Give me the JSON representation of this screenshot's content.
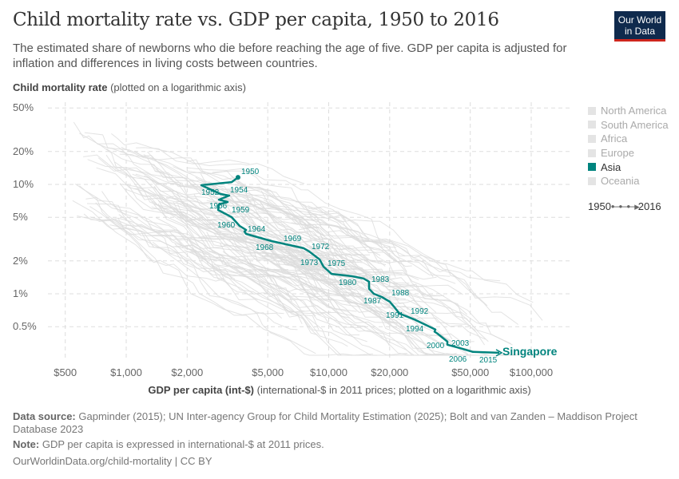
{
  "header": {
    "title": "Child mortality rate vs. GDP per capita, 1950 to 2016",
    "subtitle": "The estimated share of newborns who die before reaching the age of five. GDP per capita is adjusted for inflation and differences in living costs between countries.",
    "logo": "Our World in Data"
  },
  "chart_data": {
    "type": "line",
    "title": "Child mortality rate vs. GDP per capita, 1950 to 2016",
    "ylabel_bold": "Child mortality rate",
    "ylabel_note": "(plotted on a logarithmic axis)",
    "xlabel_bold": "GDP per capita (int-$)",
    "xlabel_note": "(international-$ in 2011 prices; plotted on a logarithmic axis)",
    "x_scale": "log",
    "y_scale": "log",
    "xlim": [
      420,
      140000
    ],
    "ylim": [
      0.25,
      55
    ],
    "grid": true,
    "x_ticks": [
      {
        "v": 500,
        "label": "$500"
      },
      {
        "v": 1000,
        "label": "$1,000"
      },
      {
        "v": 2000,
        "label": "$2,000"
      },
      {
        "v": 5000,
        "label": "$5,000"
      },
      {
        "v": 10000,
        "label": "$10,000"
      },
      {
        "v": 20000,
        "label": "$20,000"
      },
      {
        "v": 50000,
        "label": "$50,000"
      },
      {
        "v": 100000,
        "label": "$100,000"
      }
    ],
    "y_ticks": [
      {
        "v": 50,
        "label": "50%"
      },
      {
        "v": 20,
        "label": "20%"
      },
      {
        "v": 10,
        "label": "10%"
      },
      {
        "v": 5,
        "label": "5%"
      },
      {
        "v": 2,
        "label": "2%"
      },
      {
        "v": 1,
        "label": "1%"
      },
      {
        "v": 0.5,
        "label": "0.5%"
      }
    ],
    "highlight": {
      "name": "Singapore",
      "color": "#00847e",
      "points": [
        [
          3565,
          11.6
        ],
        [
          3318,
          10.5
        ],
        [
          2349,
          9.83
        ],
        [
          2920,
          8.17
        ],
        [
          3226,
          7.9
        ],
        [
          2870,
          7.26
        ],
        [
          3170,
          6.91
        ],
        [
          2870,
          6.57
        ],
        [
          2843,
          5.84
        ],
        [
          3318,
          5.02
        ],
        [
          3631,
          4.17
        ],
        [
          3908,
          3.83
        ],
        [
          3837,
          3.71
        ],
        [
          3908,
          3.53
        ],
        [
          5224,
          3.03
        ],
        [
          7516,
          2.61
        ],
        [
          8000,
          2.44
        ],
        [
          9014,
          2.06
        ],
        [
          9425,
          1.77
        ],
        [
          10320,
          1.52
        ],
        [
          12950,
          1.45
        ],
        [
          14850,
          1.38
        ],
        [
          15820,
          1.29
        ],
        [
          15820,
          1.11
        ],
        [
          16710,
          1.0
        ],
        [
          18290,
          0.935
        ],
        [
          20040,
          0.845
        ],
        [
          21150,
          0.75
        ],
        [
          22350,
          0.66
        ],
        [
          26790,
          0.577
        ],
        [
          33630,
          0.472
        ],
        [
          33330,
          0.45
        ],
        [
          34300,
          0.435
        ],
        [
          37170,
          0.386
        ],
        [
          38540,
          0.366
        ],
        [
          38540,
          0.342
        ],
        [
          44160,
          0.32
        ],
        [
          51520,
          0.294
        ],
        [
          69560,
          0.289
        ]
      ],
      "year_labels": [
        "1950",
        "1952",
        "1954",
        "1956",
        "1959",
        "1960",
        "1964",
        "1968",
        "1969",
        "1972",
        "1973",
        "1975",
        "1980",
        "1983",
        "1987",
        "1988",
        "1991",
        "1992",
        "1994",
        "2000",
        "2003",
        "2006",
        "2015"
      ]
    },
    "legend": {
      "items": [
        {
          "label": "North America",
          "active": false
        },
        {
          "label": "South America",
          "active": false
        },
        {
          "label": "Africa",
          "active": false
        },
        {
          "label": "Europe",
          "active": false
        },
        {
          "label": "Asia",
          "active": true
        },
        {
          "label": "Oceania",
          "active": false
        }
      ],
      "time_start": "1950",
      "time_end": "2016",
      "position": "right"
    },
    "colors": {
      "background_lines": "#dcdcdc",
      "highlight": "#00847e"
    }
  },
  "footer": {
    "source_label": "Data source:",
    "source": "Gapminder (2015); UN Inter-agency Group for Child Mortality Estimation (2025); Bolt and van Zanden – Maddison Project Database 2023",
    "note_label": "Note:",
    "note": "GDP per capita is expressed in international-$ at 2011 prices.",
    "url": "OurWorldinData.org/child-mortality | CC BY"
  }
}
